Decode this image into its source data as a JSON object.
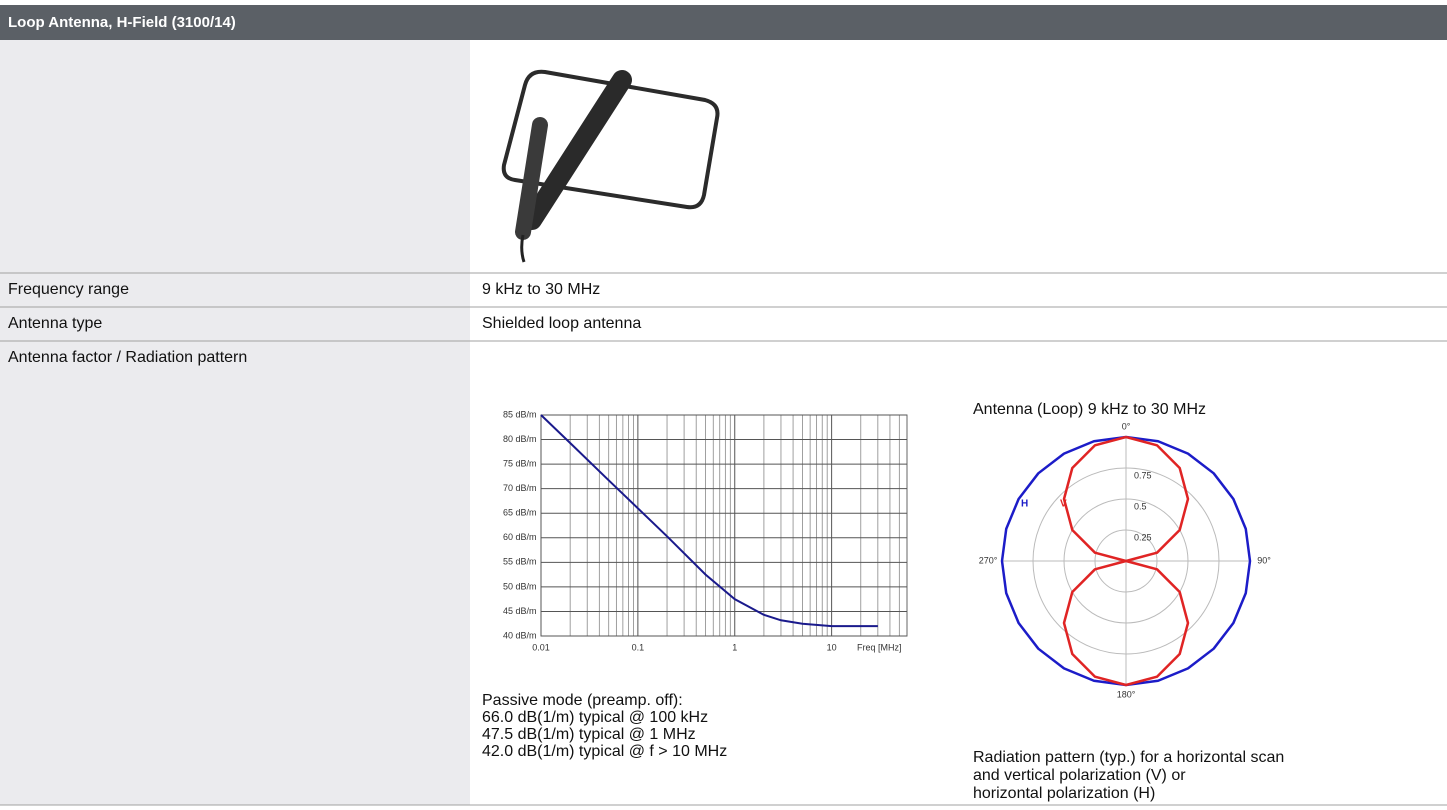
{
  "header": {
    "title": "Loop Antenna, H-Field (3100/14)"
  },
  "table": {
    "rows": [
      [
        "Frequency range",
        "9 kHz to 30 MHz"
      ],
      [
        "Antenna type",
        "Shielded loop antenna"
      ],
      [
        "Antenna factor / Radiation pattern"
      ]
    ]
  },
  "notes": {
    "passive": [
      "Passive mode (preamp. off):",
      "66.0 dB(1/m) typical @ 100 kHz",
      "47.5 dB(1/m) typical @ 1 MHz",
      "42.0 dB(1/m) typical @ f > 10 MHz"
    ],
    "radiation": [
      "Radiation pattern (typ.) for a horizontal scan",
      "and vertical polarization (V) or",
      "horizontal polarization (H)"
    ]
  },
  "chart_data": [
    {
      "type": "line",
      "xlabel": "Freq [MHz]",
      "log_x": true,
      "grid": true,
      "x": [
        0.01,
        0.02,
        0.05,
        0.1,
        0.2,
        0.5,
        1,
        2,
        3,
        5,
        10,
        20,
        30
      ],
      "series": [
        {
          "color": "#1a1a8c",
          "values": [
            85,
            79.3,
            71.7,
            66,
            60.3,
            52.5,
            47.5,
            44.3,
            43.2,
            42.5,
            42,
            42,
            42
          ]
        }
      ],
      "xlim": [
        0.01,
        60
      ],
      "xticks": [
        0.01,
        0.1,
        1,
        10
      ],
      "xgrid_minor": [
        0.02,
        0.03,
        0.04,
        0.05,
        0.06,
        0.07,
        0.08,
        0.09,
        0.2,
        0.3,
        0.4,
        0.5,
        0.6,
        0.7,
        0.8,
        0.9,
        2,
        3,
        4,
        5,
        6,
        7,
        8,
        9,
        20,
        30,
        40,
        50
      ],
      "ylim": [
        40,
        85
      ],
      "yticks": [
        {
          "value": 40,
          "label": "40 dB/m"
        },
        {
          "value": 45,
          "label": "45 dB/m"
        },
        {
          "value": 50,
          "label": "50 dB/m"
        },
        {
          "value": 55,
          "label": "55 dB/m"
        },
        {
          "value": 60,
          "label": "60 dB/m"
        },
        {
          "value": 65,
          "label": "65 dB/m"
        },
        {
          "value": 70,
          "label": "70 dB/m"
        },
        {
          "value": 75,
          "label": "75 dB/m"
        },
        {
          "value": 80,
          "label": "80 dB/m"
        },
        {
          "value": 85,
          "label": "85 dB/m"
        }
      ]
    },
    {
      "type": "polar",
      "title": "Antenna (Loop) 9 kHz to 30 MHz",
      "theta": [
        0,
        15,
        30,
        45,
        60,
        75,
        90,
        105,
        120,
        135,
        150,
        165,
        180,
        195,
        210,
        225,
        240,
        255,
        270,
        285,
        300,
        315,
        330,
        345,
        360
      ],
      "series": [
        {
          "name": "H",
          "color": "#1c1cc8",
          "values": [
            1,
            1,
            1,
            1,
            1,
            1,
            1,
            1,
            1,
            1,
            1,
            1,
            1,
            1,
            1,
            1,
            1,
            1,
            1,
            1,
            1,
            1,
            1,
            1,
            1
          ]
        },
        {
          "name": "V",
          "color": "#e02424",
          "values": [
            1,
            0.966,
            0.866,
            0.707,
            0.5,
            0.259,
            0,
            0.259,
            0.5,
            0.707,
            0.866,
            0.966,
            1,
            0.966,
            0.866,
            0.707,
            0.5,
            0.259,
            0,
            0.259,
            0.5,
            0.707,
            0.866,
            0.966,
            1
          ]
        }
      ],
      "rlim": [
        0,
        1
      ],
      "rticks": [
        0.25,
        0.5,
        0.75
      ],
      "thetaticks": [
        {
          "value": 0,
          "label": "0°"
        },
        {
          "value": 90,
          "label": "90°"
        },
        {
          "value": 180,
          "label": "180°"
        },
        {
          "value": 270,
          "label": "270°"
        }
      ]
    }
  ]
}
